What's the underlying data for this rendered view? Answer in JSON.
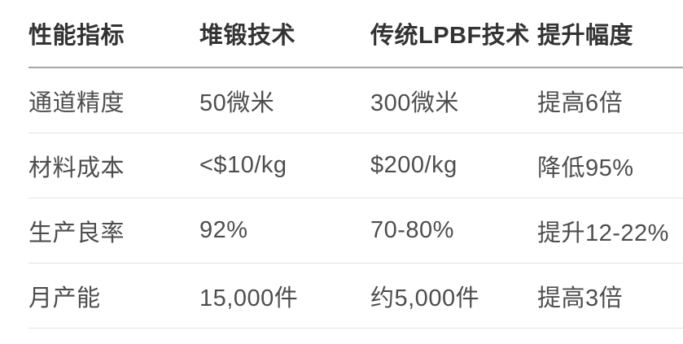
{
  "chart_data": {
    "type": "table",
    "columns": [
      "性能指标",
      "堆锻技术",
      "传统LPBF技术",
      "提升幅度"
    ],
    "rows": [
      [
        "通道精度",
        "50微米",
        "300微米",
        "提高6倍"
      ],
      [
        "材料成本",
        "<$10/kg",
        "$200/kg",
        "降低95%"
      ],
      [
        "生产良率",
        "92%",
        "70-80%",
        "提升12-22%"
      ],
      [
        "月产能",
        "15,000件",
        "约5,000件",
        "提高3倍"
      ]
    ]
  },
  "colors": {
    "background": "#ffffff",
    "header_text": "#333333",
    "body_text": "#4d4d4d",
    "header_divider": "#a6a6a6",
    "row_divider": "#e3e3e3"
  }
}
